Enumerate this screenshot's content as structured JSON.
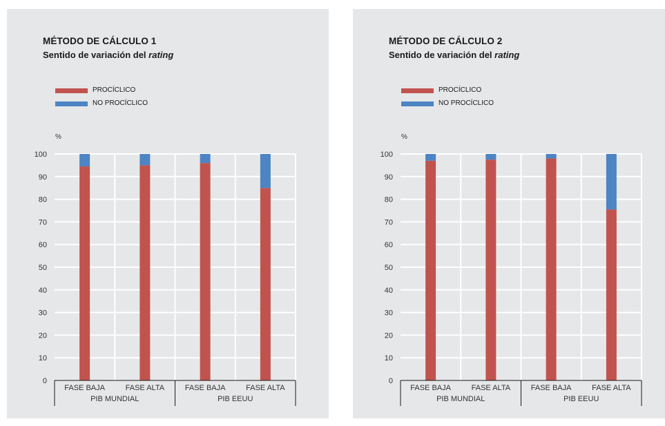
{
  "colors": {
    "pro": "#c1534f",
    "nopro": "#4d84c4",
    "panel_bg": "#e6e7e8",
    "grid": "#ffffff",
    "axis": "#1a1a1a"
  },
  "unit_label": "%",
  "y_ticks": [
    0,
    10,
    20,
    30,
    40,
    50,
    60,
    70,
    80,
    90,
    100
  ],
  "chart_data": [
    {
      "type": "bar",
      "stacked": true,
      "title": "MÉTODO DE CÁLCULO 1",
      "subtitle_main": "Sentido de variación del ",
      "subtitle_italic": "rating",
      "ylabel": "%",
      "ylim": [
        0,
        100
      ],
      "grid": true,
      "legend_position": "top-left",
      "categories": [
        "FASE BAJA",
        "FASE ALTA",
        "FASE BAJA",
        "FASE ALTA"
      ],
      "groups": [
        {
          "label": "PIB MUNDIAL",
          "span": [
            0,
            1
          ]
        },
        {
          "label": "PIB EEUU",
          "span": [
            2,
            3
          ]
        }
      ],
      "series": [
        {
          "name": "PROCÍCLICO",
          "color": "#c1534f",
          "values": [
            94.5,
            95,
            96,
            85
          ]
        },
        {
          "name": "NO PROCÍCLICO",
          "color": "#4d84c4",
          "values": [
            5.5,
            5,
            4,
            15
          ]
        }
      ]
    },
    {
      "type": "bar",
      "stacked": true,
      "title": "MÉTODO DE CÁLCULO 2",
      "subtitle_main": "Sentido de variación del ",
      "subtitle_italic": "rating",
      "ylabel": "%",
      "ylim": [
        0,
        100
      ],
      "grid": true,
      "legend_position": "top-left",
      "categories": [
        "FASE BAJA",
        "FASE ALTA",
        "FASE BAJA",
        "FASE ALTA"
      ],
      "groups": [
        {
          "label": "PIB MUNDIAL",
          "span": [
            0,
            1
          ]
        },
        {
          "label": "PIB EEUU",
          "span": [
            2,
            3
          ]
        }
      ],
      "series": [
        {
          "name": "PROCÍCLICO",
          "color": "#c1534f",
          "values": [
            97,
            97.5,
            98,
            75.5
          ]
        },
        {
          "name": "NO PROCÍCLICO",
          "color": "#4d84c4",
          "values": [
            3,
            2.5,
            2,
            24.5
          ]
        }
      ]
    }
  ]
}
